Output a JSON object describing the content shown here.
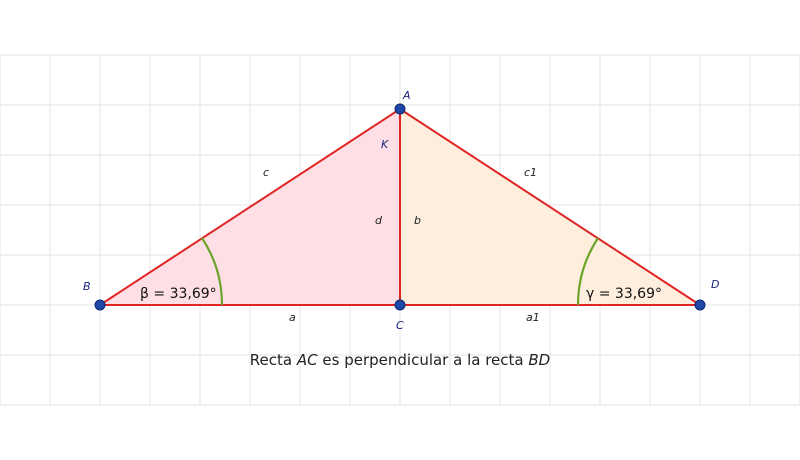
{
  "colors": {
    "grid": "#e4e4e4",
    "line": "#e02424",
    "left_fill": "#ffdfe6",
    "right_fill": "#fdeedd",
    "arc": "#6aa52a",
    "point": "#1f47a8",
    "point_stroke": "#0d2a6e"
  },
  "points": {
    "A": "A",
    "B": "B",
    "C": "C",
    "D": "D",
    "K": "K"
  },
  "segments": {
    "a": "a",
    "a1": "a1",
    "b": "b",
    "c": "c",
    "c1": "c1",
    "d": "d"
  },
  "angles": {
    "beta": "β = 33,69°",
    "gamma": "γ = 33,69°"
  },
  "caption": {
    "part1": "Recta ",
    "AC": "AC",
    "part2": " es perpendicular a la recta ",
    "BD": "BD"
  }
}
